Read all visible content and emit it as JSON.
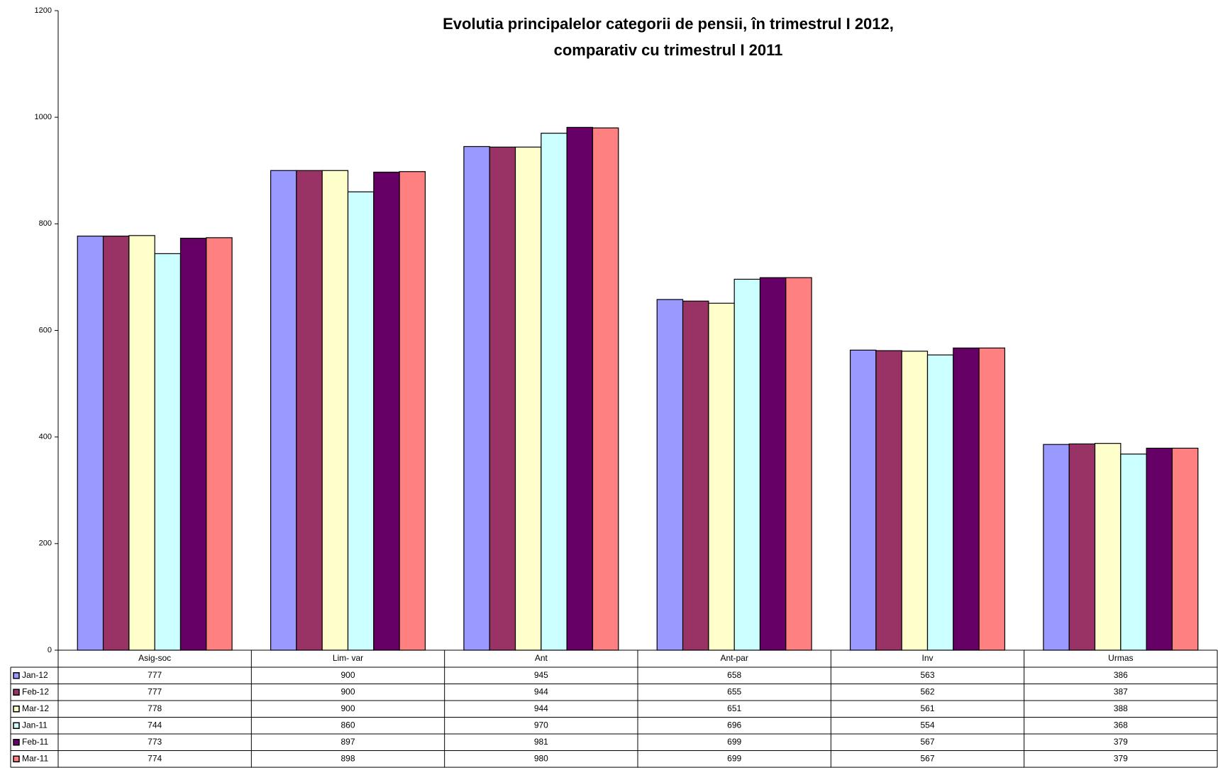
{
  "chart_data": {
    "type": "bar",
    "title": [
      "Evolutia principalelor categorii de pensii,  în trimestrul I 2012,",
      "comparativ cu  trimestrul I  2011"
    ],
    "categories": [
      "Asig-soc",
      "Lim- var",
      "Ant",
      "Ant-par",
      "Inv",
      "Urmas"
    ],
    "series": [
      {
        "name": "Jan-12",
        "color": "#9999ff",
        "values": [
          777,
          900,
          945,
          658,
          563,
          386
        ]
      },
      {
        "name": "Feb-12",
        "color": "#993366",
        "values": [
          777,
          900,
          944,
          655,
          562,
          387
        ]
      },
      {
        "name": "Mar-12",
        "color": "#ffffcc",
        "values": [
          778,
          900,
          944,
          651,
          561,
          388
        ]
      },
      {
        "name": "Jan-11",
        "color": "#ccffff",
        "values": [
          744,
          860,
          970,
          696,
          554,
          368
        ]
      },
      {
        "name": "Feb-11",
        "color": "#660066",
        "values": [
          773,
          897,
          981,
          699,
          567,
          379
        ]
      },
      {
        "name": "Mar-11",
        "color": "#ff8080",
        "values": [
          774,
          898,
          980,
          699,
          567,
          379
        ]
      }
    ],
    "ylim": [
      0,
      1200
    ],
    "yticks": [
      0,
      200,
      400,
      600,
      800,
      1000,
      1200
    ],
    "grid": false,
    "legend": "table"
  }
}
